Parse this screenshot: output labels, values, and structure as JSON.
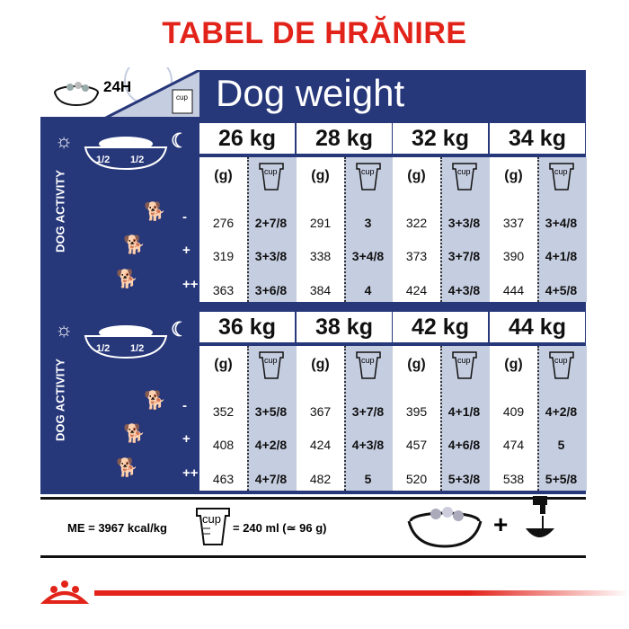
{
  "title": "TABEL DE HRĂNIRE",
  "header": {
    "period": "24H",
    "band_title": "Dog weight",
    "cup_label": "cup"
  },
  "activity_label": "DOG ACTIVITY",
  "bowl_halves": [
    "1/2",
    "1/2"
  ],
  "activity_levels": [
    "-",
    "+",
    "++"
  ],
  "unit_g": "(g)",
  "blocks": [
    {
      "columns": [
        {
          "weight": "26 kg",
          "grams": [
            "276",
            "319",
            "363"
          ],
          "cups": [
            "2+7/8",
            "3+3/8",
            "3+6/8"
          ]
        },
        {
          "weight": "28 kg",
          "grams": [
            "291",
            "338",
            "384"
          ],
          "cups": [
            "3",
            "3+4/8",
            "4"
          ]
        },
        {
          "weight": "32 kg",
          "grams": [
            "322",
            "373",
            "424"
          ],
          "cups": [
            "3+3/8",
            "3+7/8",
            "4+3/8"
          ]
        },
        {
          "weight": "34 kg",
          "grams": [
            "337",
            "390",
            "444"
          ],
          "cups": [
            "3+4/8",
            "4+1/8",
            "4+5/8"
          ]
        }
      ]
    },
    {
      "columns": [
        {
          "weight": "36 kg",
          "grams": [
            "352",
            "408",
            "463"
          ],
          "cups": [
            "3+5/8",
            "4+2/8",
            "4+7/8"
          ]
        },
        {
          "weight": "38 kg",
          "grams": [
            "367",
            "424",
            "482"
          ],
          "cups": [
            "3+7/8",
            "4+3/8",
            "5"
          ]
        },
        {
          "weight": "42 kg",
          "grams": [
            "395",
            "457",
            "520"
          ],
          "cups": [
            "4+1/8",
            "4+6/8",
            "5+3/8"
          ]
        },
        {
          "weight": "44 kg",
          "grams": [
            "409",
            "474",
            "538"
          ],
          "cups": [
            "4+2/8",
            "5",
            "5+5/8"
          ]
        }
      ]
    }
  ],
  "footer": {
    "energy": "ME = 3967 kcal/kg",
    "cup_equivalence": "= 240 ml (≃ 96 g)",
    "plus": "+"
  },
  "colors": {
    "title_red": "#e2231a",
    "navy": "#26377a",
    "cup_column": "#c5cde0"
  }
}
